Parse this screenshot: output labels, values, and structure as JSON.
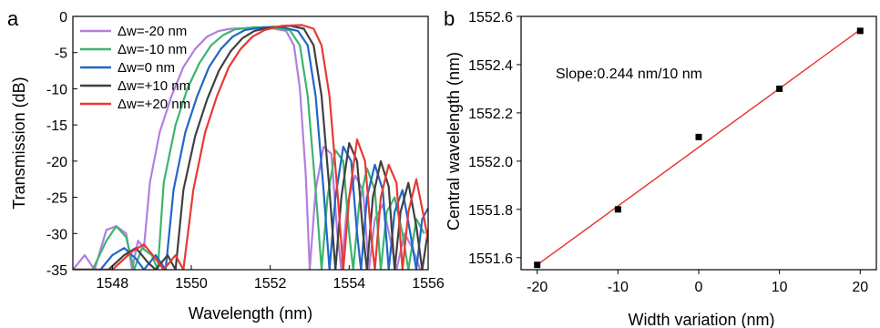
{
  "panels": [
    {
      "letter": "a",
      "chart_data": {
        "type": "line",
        "title": "",
        "xlabel": "Wavelength (nm)",
        "ylabel": "Transmission (dB)",
        "xlim": [
          1547,
          1556
        ],
        "ylim": [
          -35,
          0
        ],
        "xticks": [
          1548,
          1550,
          1552,
          1554,
          1556
        ],
        "yticks": [
          0,
          -5,
          -10,
          -15,
          -20,
          -25,
          -30,
          -35
        ],
        "grid": false,
        "legend_position": "top-left",
        "series": [
          {
            "name": "Δw=-20 nm",
            "color": "#b27fe0",
            "points": [
              [
                1547.0,
                -35
              ],
              [
                1547.3,
                -33
              ],
              [
                1547.55,
                -35
              ],
              [
                1547.85,
                -29.5
              ],
              [
                1548.1,
                -29
              ],
              [
                1548.35,
                -30
              ],
              [
                1548.5,
                -35
              ],
              [
                1548.65,
                -31
              ],
              [
                1548.8,
                -32
              ],
              [
                1548.95,
                -23
              ],
              [
                1549.2,
                -16
              ],
              [
                1549.5,
                -11
              ],
              [
                1549.8,
                -7
              ],
              [
                1550.1,
                -4.5
              ],
              [
                1550.4,
                -2.8
              ],
              [
                1550.7,
                -2
              ],
              [
                1551.0,
                -1.7
              ],
              [
                1551.5,
                -1.6
              ],
              [
                1552.0,
                -1.6
              ],
              [
                1552.4,
                -2
              ],
              [
                1552.6,
                -4
              ],
              [
                1552.75,
                -10
              ],
              [
                1552.9,
                -22
              ],
              [
                1553.0,
                -35
              ],
              [
                1553.15,
                -24
              ],
              [
                1553.35,
                -18
              ],
              [
                1553.55,
                -19
              ],
              [
                1553.7,
                -30
              ],
              [
                1553.8,
                -35
              ],
              [
                1553.95,
                -26
              ],
              [
                1554.15,
                -22
              ],
              [
                1554.35,
                -24
              ],
              [
                1554.5,
                -35
              ],
              [
                1554.65,
                -28
              ],
              [
                1554.85,
                -26
              ],
              [
                1555.05,
                -31
              ],
              [
                1555.2,
                -35
              ],
              [
                1555.4,
                -30
              ],
              [
                1555.6,
                -32
              ],
              [
                1555.8,
                -35
              ]
            ]
          },
          {
            "name": "Δw=-10 nm",
            "color": "#3cb46e",
            "points": [
              [
                1547.0,
                -35
              ],
              [
                1547.5,
                -35
              ],
              [
                1547.85,
                -31
              ],
              [
                1548.1,
                -29
              ],
              [
                1548.35,
                -30.5
              ],
              [
                1548.55,
                -35
              ],
              [
                1548.75,
                -32
              ],
              [
                1549.0,
                -33
              ],
              [
                1549.15,
                -35
              ],
              [
                1549.3,
                -23
              ],
              [
                1549.6,
                -15
              ],
              [
                1549.9,
                -10
              ],
              [
                1550.2,
                -6.5
              ],
              [
                1550.5,
                -4
              ],
              [
                1550.8,
                -2.6
              ],
              [
                1551.1,
                -1.8
              ],
              [
                1551.6,
                -1.5
              ],
              [
                1552.1,
                -1.6
              ],
              [
                1552.5,
                -1.9
              ],
              [
                1552.75,
                -4
              ],
              [
                1552.95,
                -11
              ],
              [
                1553.15,
                -24
              ],
              [
                1553.3,
                -35
              ],
              [
                1553.45,
                -25
              ],
              [
                1553.65,
                -18.5
              ],
              [
                1553.85,
                -20
              ],
              [
                1554.0,
                -30
              ],
              [
                1554.1,
                -35
              ],
              [
                1554.25,
                -26
              ],
              [
                1554.45,
                -21
              ],
              [
                1554.65,
                -24
              ],
              [
                1554.8,
                -35
              ],
              [
                1554.95,
                -27
              ],
              [
                1555.15,
                -25
              ],
              [
                1555.35,
                -30
              ],
              [
                1555.5,
                -35
              ],
              [
                1555.7,
                -28
              ],
              [
                1555.9,
                -30
              ]
            ]
          },
          {
            "name": "Δw=0 nm",
            "color": "#2266c8",
            "points": [
              [
                1547.0,
                -35
              ],
              [
                1547.7,
                -35
              ],
              [
                1548.0,
                -33
              ],
              [
                1548.3,
                -32
              ],
              [
                1548.6,
                -33.5
              ],
              [
                1548.8,
                -35
              ],
              [
                1549.1,
                -33
              ],
              [
                1549.35,
                -35
              ],
              [
                1549.55,
                -24
              ],
              [
                1549.85,
                -16
              ],
              [
                1550.15,
                -11
              ],
              [
                1550.45,
                -7
              ],
              [
                1550.75,
                -4.5
              ],
              [
                1551.05,
                -2.8
              ],
              [
                1551.35,
                -1.9
              ],
              [
                1551.8,
                -1.5
              ],
              [
                1552.3,
                -1.5
              ],
              [
                1552.7,
                -2
              ],
              [
                1552.95,
                -4
              ],
              [
                1553.15,
                -11
              ],
              [
                1553.35,
                -24
              ],
              [
                1553.5,
                -35
              ],
              [
                1553.65,
                -25
              ],
              [
                1553.85,
                -18
              ],
              [
                1554.05,
                -20
              ],
              [
                1554.2,
                -30
              ],
              [
                1554.3,
                -35
              ],
              [
                1554.45,
                -25
              ],
              [
                1554.65,
                -20.5
              ],
              [
                1554.85,
                -24
              ],
              [
                1555.0,
                -35
              ],
              [
                1555.15,
                -27
              ],
              [
                1555.35,
                -24
              ],
              [
                1555.55,
                -30
              ],
              [
                1555.7,
                -35
              ],
              [
                1555.85,
                -28
              ],
              [
                1556.0,
                -26.5
              ]
            ]
          },
          {
            "name": "Δw=+10 nm",
            "color": "#404040",
            "points": [
              [
                1547.0,
                -35
              ],
              [
                1547.9,
                -35
              ],
              [
                1548.3,
                -33
              ],
              [
                1548.6,
                -32
              ],
              [
                1548.9,
                -34
              ],
              [
                1549.1,
                -35
              ],
              [
                1549.4,
                -33
              ],
              [
                1549.6,
                -35
              ],
              [
                1549.8,
                -24
              ],
              [
                1550.1,
                -16.5
              ],
              [
                1550.4,
                -11.5
              ],
              [
                1550.7,
                -7.5
              ],
              [
                1551.0,
                -4.8
              ],
              [
                1551.3,
                -3
              ],
              [
                1551.6,
                -2
              ],
              [
                1552.0,
                -1.5
              ],
              [
                1552.5,
                -1.3
              ],
              [
                1552.85,
                -1.7
              ],
              [
                1553.1,
                -4
              ],
              [
                1553.3,
                -11
              ],
              [
                1553.5,
                -24
              ],
              [
                1553.65,
                -35
              ],
              [
                1553.8,
                -25
              ],
              [
                1554.0,
                -17.5
              ],
              [
                1554.2,
                -20
              ],
              [
                1554.35,
                -30
              ],
              [
                1554.45,
                -35
              ],
              [
                1554.6,
                -25
              ],
              [
                1554.8,
                -20
              ],
              [
                1555.0,
                -23.5
              ],
              [
                1555.15,
                -35
              ],
              [
                1555.3,
                -27
              ],
              [
                1555.5,
                -23
              ],
              [
                1555.7,
                -29
              ],
              [
                1555.85,
                -35
              ],
              [
                1556.0,
                -29.5
              ]
            ]
          },
          {
            "name": "Δw=+20 nm",
            "color": "#e83a32",
            "points": [
              [
                1547.0,
                -35
              ],
              [
                1548.0,
                -35
              ],
              [
                1548.5,
                -32.5
              ],
              [
                1548.8,
                -31.5
              ],
              [
                1549.1,
                -33.5
              ],
              [
                1549.3,
                -35
              ],
              [
                1549.6,
                -33
              ],
              [
                1549.8,
                -35
              ],
              [
                1550.05,
                -24
              ],
              [
                1550.35,
                -16
              ],
              [
                1550.65,
                -11
              ],
              [
                1550.95,
                -7
              ],
              [
                1551.25,
                -4.5
              ],
              [
                1551.55,
                -2.8
              ],
              [
                1551.85,
                -1.9
              ],
              [
                1552.3,
                -1.3
              ],
              [
                1552.8,
                -1.2
              ],
              [
                1553.1,
                -1.7
              ],
              [
                1553.3,
                -4
              ],
              [
                1553.5,
                -11
              ],
              [
                1553.7,
                -24
              ],
              [
                1553.85,
                -35
              ],
              [
                1554.0,
                -25
              ],
              [
                1554.2,
                -17
              ],
              [
                1554.4,
                -20
              ],
              [
                1554.55,
                -30
              ],
              [
                1554.65,
                -35
              ],
              [
                1554.8,
                -25
              ],
              [
                1555.0,
                -20.5
              ],
              [
                1555.2,
                -23
              ],
              [
                1555.35,
                -35
              ],
              [
                1555.5,
                -27
              ],
              [
                1555.7,
                -22.5
              ],
              [
                1555.9,
                -28
              ],
              [
                1556.0,
                -31
              ]
            ]
          }
        ]
      }
    },
    {
      "letter": "b",
      "annotation": "Slope:0.244 nm/10 nm",
      "chart_data": {
        "type": "scatter",
        "title": "",
        "xlabel": "Width variation (nm)",
        "ylabel": "Central wavelength (nm)",
        "xlim": [
          -22,
          22
        ],
        "ylim": [
          1551.55,
          1552.6
        ],
        "xticks": [
          -20,
          -10,
          0,
          10,
          20
        ],
        "ytick_labels": [
          "1551.6",
          "1551.8",
          "1552.0",
          "1552.2",
          "1552.4",
          "1552.6"
        ],
        "grid": false,
        "marker_color": "#000000",
        "fit_color": "#e8302a",
        "x": [
          -20,
          -10,
          0,
          10,
          20
        ],
        "y": [
          1551.57,
          1551.8,
          1552.1,
          1552.3,
          1552.54
        ],
        "fit_line": [
          [
            -20,
            1551.57
          ],
          [
            20,
            1552.545
          ]
        ]
      }
    }
  ]
}
